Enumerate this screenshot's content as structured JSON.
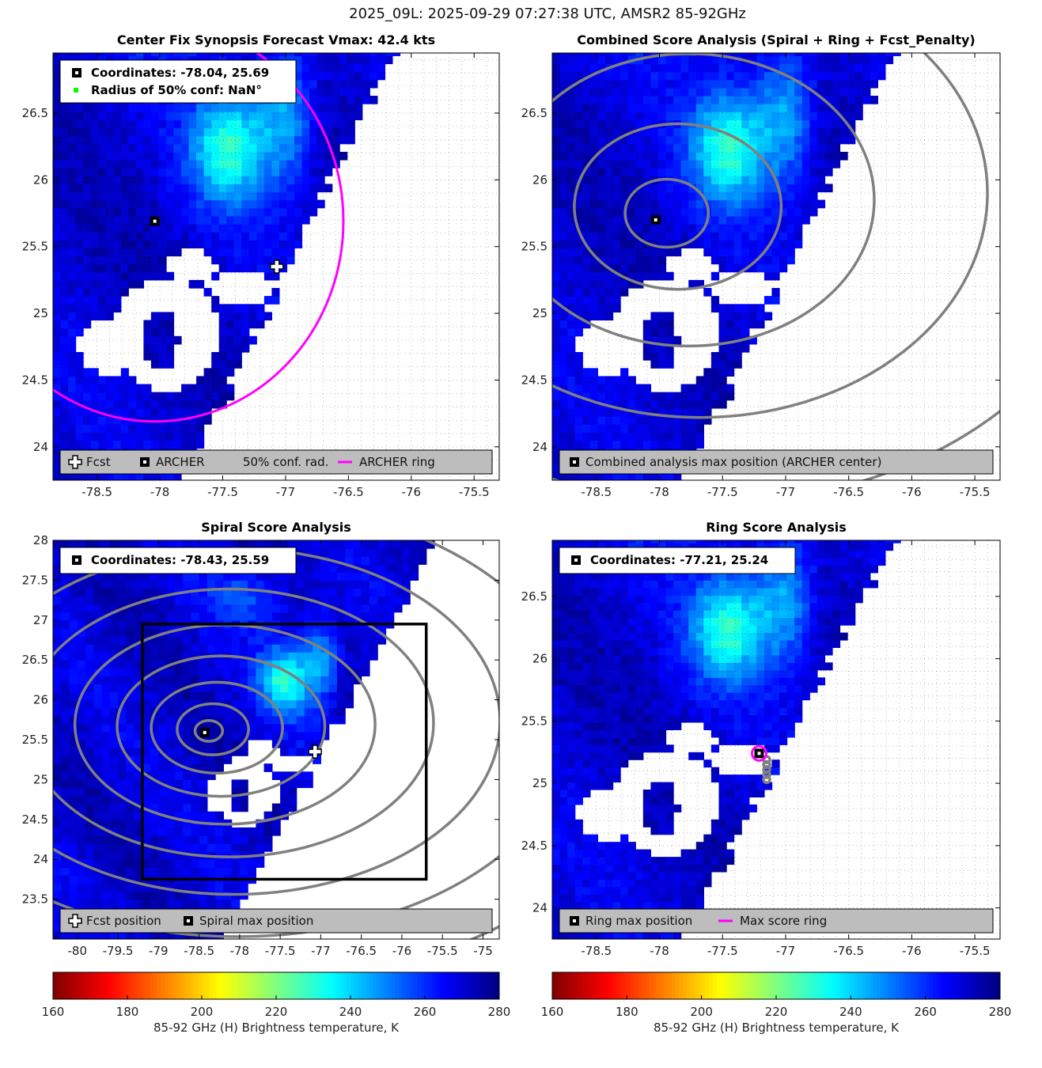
{
  "suptitle": "2025_09L: 2025-09-29 07:27:38 UTC, AMSR2 85-92GHz",
  "colors": {
    "archer_ring": "#ff00ff",
    "contour": "#808080",
    "conf_dot": "#00ff00",
    "legend_bg": "#bdbdbd",
    "grid": "#333333"
  },
  "panels": [
    {
      "id": "synopsis",
      "title": "Center Fix Synopsis     Forecast Vmax: 42.4 kts",
      "xlim": [
        -78.85,
        -75.3
      ],
      "ylim": [
        23.75,
        26.95
      ],
      "xticks": [
        -78.5,
        -78,
        -77.5,
        -77,
        -76.5,
        -76,
        -75.5
      ],
      "yticks": [
        24,
        24.5,
        25,
        25.5,
        26,
        26.5
      ],
      "info": [
        "Coordinates: -78.04, 25.69",
        "Radius of 50% conf: NaN°"
      ],
      "legend": [
        "Fcst",
        "ARCHER",
        "50% conf. rad.",
        "ARCHER ring"
      ]
    },
    {
      "id": "combined",
      "title": "Combined Score Analysis (Spiral + Ring + Fcst_Penalty)",
      "xlim": [
        -78.85,
        -75.3
      ],
      "ylim": [
        23.75,
        26.95
      ],
      "xticks": [
        -78.5,
        -78,
        -77.5,
        -77,
        -76.5,
        -76,
        -75.5
      ],
      "yticks": [
        24,
        24.5,
        25,
        25.5,
        26,
        26.5
      ],
      "info": [],
      "legend": [
        "Combined analysis max position (ARCHER center)"
      ]
    },
    {
      "id": "spiral",
      "title": "Spiral Score Analysis",
      "xlim": [
        -80.3,
        -74.8
      ],
      "ylim": [
        23.0,
        28.0
      ],
      "xticks": [
        -80,
        -79.5,
        -79,
        -78.5,
        -78,
        -77.5,
        -77,
        -76.5,
        -76,
        -75.5,
        -75
      ],
      "yticks": [
        23.5,
        24,
        24.5,
        25,
        25.5,
        26,
        26.5,
        27,
        27.5,
        28
      ],
      "info": [
        "Coordinates: -78.43, 25.59"
      ],
      "legend": [
        "Fcst position",
        "Spiral max position"
      ]
    },
    {
      "id": "ring",
      "title": "Ring Score Analysis",
      "xlim": [
        -78.85,
        -75.3
      ],
      "ylim": [
        23.75,
        26.95
      ],
      "xticks": [
        -78.5,
        -78,
        -77.5,
        -77,
        -76.5,
        -76,
        -75.5
      ],
      "yticks": [
        24,
        24.5,
        25,
        25.5,
        26,
        26.5
      ],
      "info": [
        "Coordinates: -77.21, 25.24"
      ],
      "legend": [
        "Ring max position",
        "Max score ring"
      ]
    }
  ],
  "colorbar": {
    "label": "85-92 GHz (H) Brightness temperature, K",
    "ticks": [
      160,
      180,
      200,
      220,
      240,
      260,
      280
    ],
    "range": [
      160,
      280
    ]
  },
  "chart_data": [
    {
      "type": "heatmap",
      "title": "Center Fix Synopsis",
      "subtitle": "Forecast Vmax: 42.4 kts",
      "xlim": [
        -78.85,
        -75.3
      ],
      "ylim": [
        23.75,
        26.95
      ],
      "points": {
        "fcst": [
          -77.07,
          25.35
        ],
        "archer": [
          -78.04,
          25.69
        ]
      },
      "archer_ring": {
        "center": [
          -78.04,
          25.69
        ],
        "radius_deg": 1.5
      },
      "grid": true,
      "legend": "bottom"
    },
    {
      "type": "heatmap",
      "title": "Combined Score Analysis (Spiral + Ring + Fcst_Penalty)",
      "xlim": [
        -78.85,
        -75.3
      ],
      "ylim": [
        23.75,
        26.95
      ],
      "points": {
        "combined_max": [
          -78.03,
          25.7
        ]
      },
      "grid": true,
      "legend": "bottom"
    },
    {
      "type": "heatmap",
      "title": "Spiral Score Analysis",
      "xlim": [
        -80.3,
        -74.8
      ],
      "ylim": [
        23.0,
        28.0
      ],
      "points": {
        "fcst": [
          -77.07,
          25.35
        ],
        "spiral_max": [
          -78.43,
          25.59
        ]
      },
      "search_box": {
        "x": [
          -79.2,
          -75.7
        ],
        "y": [
          23.75,
          26.95
        ]
      },
      "grid": false,
      "legend": "bottom"
    },
    {
      "type": "heatmap",
      "title": "Ring Score Analysis",
      "xlim": [
        -78.85,
        -75.3
      ],
      "ylim": [
        23.75,
        26.95
      ],
      "points": {
        "ring_max": [
          -77.21,
          25.24
        ]
      },
      "grid": true,
      "legend": "bottom"
    }
  ]
}
